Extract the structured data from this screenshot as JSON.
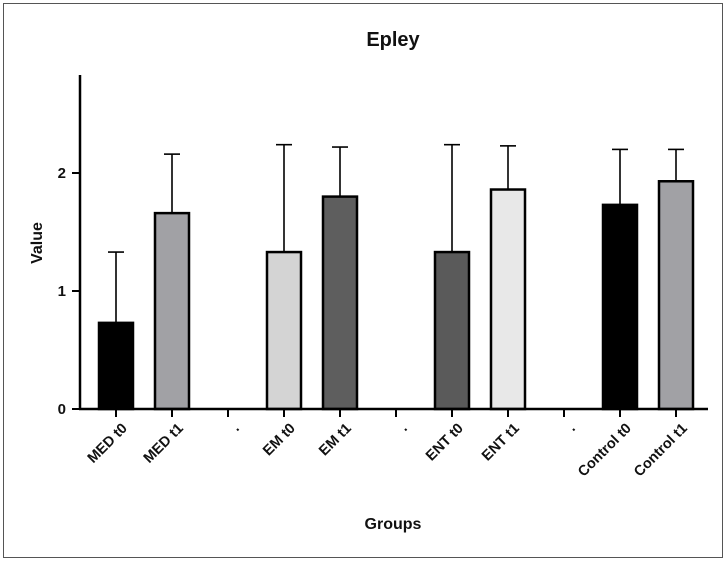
{
  "chart_data": {
    "type": "bar",
    "title": "Epley",
    "xlabel": "Groups",
    "ylabel": "Value",
    "ylim": [
      0,
      2.9
    ],
    "yticks": [
      "0",
      "1",
      "2"
    ],
    "categories": [
      "MED t0",
      "MED t1",
      ".",
      "EM t0",
      "EM t1",
      ".",
      "ENT t0",
      "ENT t1",
      ".",
      "Control t0",
      "Control t1"
    ],
    "values": [
      0.73,
      1.66,
      null,
      1.33,
      1.8,
      null,
      1.33,
      1.86,
      null,
      1.73,
      1.93
    ],
    "error_upper": [
      1.33,
      2.16,
      null,
      2.24,
      2.22,
      null,
      2.24,
      2.23,
      null,
      2.2,
      2.2
    ],
    "colors": [
      "#000000",
      "#a1a1a5",
      null,
      "#d4d4d4",
      "#5e5e5e",
      null,
      "#5a5a5a",
      "#e8e8e8",
      null,
      "#000000",
      "#a1a1a5"
    ]
  }
}
